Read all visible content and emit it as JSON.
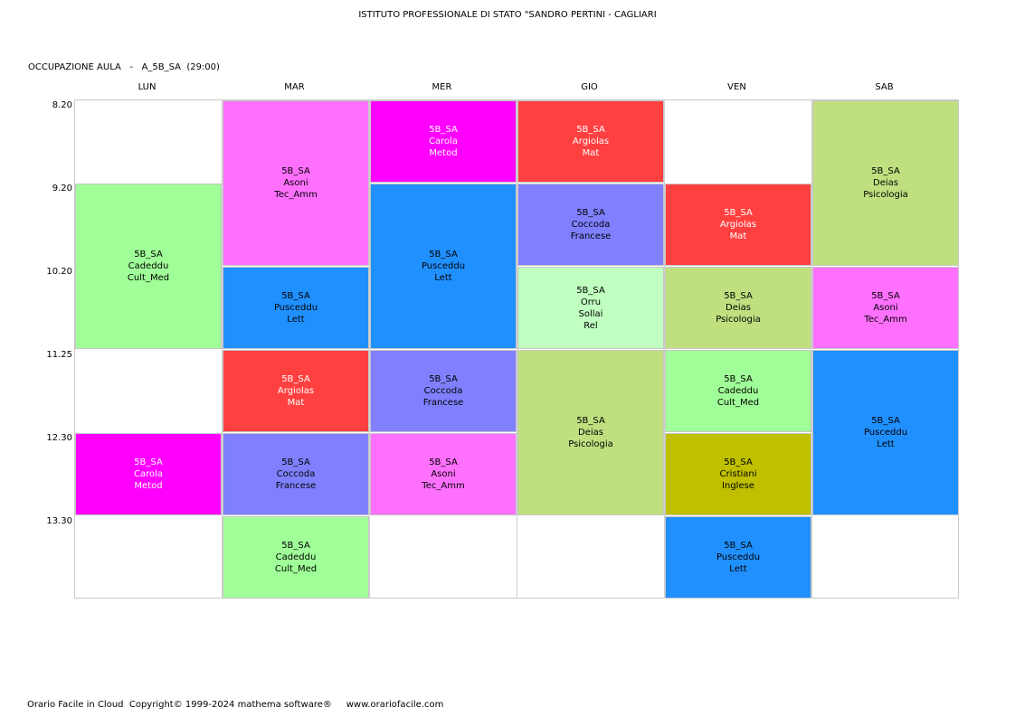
{
  "header": {
    "school": "ISTITUTO PROFESSIONALE DI STATO \"SANDRO PERTINI - CAGLIARI",
    "room_label": "OCCUPAZIONE AULA   -   A_5B_SA  (29:00)"
  },
  "days": [
    "LUN",
    "MAR",
    "MER",
    "GIO",
    "VEN",
    "SAB"
  ],
  "times": [
    "8.20",
    "9.20",
    "10.20",
    "11.25",
    "12.30",
    "13.30"
  ],
  "colors": {
    "magenta": "#ff00ff",
    "pink": "#ff70ff",
    "red": "#ff4040",
    "blue": "#2090ff",
    "periwinkle": "#8080ff",
    "light_green": "#a0ff98",
    "pale_green": "#c0ffc0",
    "olive_green": "#c0e080",
    "olive": "#c0c000"
  },
  "lessons": [
    {
      "day": 0,
      "start": 1,
      "span": 2,
      "color": "light_green",
      "text_color": "#000000",
      "lines": [
        "5B_SA",
        "Cadeddu",
        "Cult_Med"
      ]
    },
    {
      "day": 0,
      "start": 4,
      "span": 1,
      "color": "magenta",
      "text_color": "#ffffff",
      "lines": [
        "5B_SA",
        "Carola",
        "Metod"
      ]
    },
    {
      "day": 1,
      "start": 0,
      "span": 2,
      "color": "pink",
      "text_color": "#000000",
      "lines": [
        "5B_SA",
        "Asoni",
        "Tec_Amm"
      ]
    },
    {
      "day": 1,
      "start": 2,
      "span": 1,
      "color": "blue",
      "text_color": "#000000",
      "lines": [
        "5B_SA",
        "Pusceddu",
        "Lett"
      ]
    },
    {
      "day": 1,
      "start": 3,
      "span": 1,
      "color": "red",
      "text_color": "#ffffff",
      "lines": [
        "5B_SA",
        "Argiolas",
        "Mat"
      ]
    },
    {
      "day": 1,
      "start": 4,
      "span": 1,
      "color": "periwinkle",
      "text_color": "#000000",
      "lines": [
        "5B_SA",
        "Coccoda",
        "Francese"
      ]
    },
    {
      "day": 1,
      "start": 5,
      "span": 1,
      "color": "light_green",
      "text_color": "#000000",
      "lines": [
        "5B_SA",
        "Cadeddu",
        "Cult_Med"
      ]
    },
    {
      "day": 2,
      "start": 0,
      "span": 1,
      "color": "magenta",
      "text_color": "#ffffff",
      "lines": [
        "5B_SA",
        "Carola",
        "Metod"
      ]
    },
    {
      "day": 2,
      "start": 1,
      "span": 2,
      "color": "blue",
      "text_color": "#000000",
      "lines": [
        "5B_SA",
        "Pusceddu",
        "Lett"
      ]
    },
    {
      "day": 2,
      "start": 3,
      "span": 1,
      "color": "periwinkle",
      "text_color": "#000000",
      "lines": [
        "5B_SA",
        "Coccoda",
        "Francese"
      ]
    },
    {
      "day": 2,
      "start": 4,
      "span": 1,
      "color": "pink",
      "text_color": "#000000",
      "lines": [
        "5B_SA",
        "Asoni",
        "Tec_Amm"
      ]
    },
    {
      "day": 3,
      "start": 0,
      "span": 1,
      "color": "red",
      "text_color": "#ffffff",
      "lines": [
        "5B_SA",
        "Argiolas",
        "Mat"
      ]
    },
    {
      "day": 3,
      "start": 1,
      "span": 1,
      "color": "periwinkle",
      "text_color": "#000000",
      "lines": [
        "5B_SA",
        "Coccoda",
        "Francese"
      ]
    },
    {
      "day": 3,
      "start": 2,
      "span": 1,
      "color": "pale_green",
      "text_color": "#000000",
      "lines": [
        "5B_SA",
        "Orru",
        "Sollai",
        "Rel"
      ]
    },
    {
      "day": 3,
      "start": 3,
      "span": 2,
      "color": "olive_green",
      "text_color": "#000000",
      "lines": [
        "5B_SA",
        "Deias",
        "Psicologia"
      ]
    },
    {
      "day": 4,
      "start": 1,
      "span": 1,
      "color": "red",
      "text_color": "#ffffff",
      "lines": [
        "5B_SA",
        "Argiolas",
        "Mat"
      ]
    },
    {
      "day": 4,
      "start": 2,
      "span": 1,
      "color": "olive_green",
      "text_color": "#000000",
      "lines": [
        "5B_SA",
        "Deias",
        "Psicologia"
      ]
    },
    {
      "day": 4,
      "start": 3,
      "span": 1,
      "color": "light_green",
      "text_color": "#000000",
      "lines": [
        "5B_SA",
        "Cadeddu",
        "Cult_Med"
      ]
    },
    {
      "day": 4,
      "start": 4,
      "span": 1,
      "color": "olive",
      "text_color": "#000000",
      "lines": [
        "5B_SA",
        "Cristiani",
        "Inglese"
      ]
    },
    {
      "day": 4,
      "start": 5,
      "span": 1,
      "color": "blue",
      "text_color": "#000000",
      "lines": [
        "5B_SA",
        "Pusceddu",
        "Lett"
      ]
    },
    {
      "day": 5,
      "start": 0,
      "span": 2,
      "color": "olive_green",
      "text_color": "#000000",
      "lines": [
        "5B_SA",
        "Deias",
        "Psicologia"
      ]
    },
    {
      "day": 5,
      "start": 2,
      "span": 1,
      "color": "pink",
      "text_color": "#000000",
      "lines": [
        "5B_SA",
        "Asoni",
        "Tec_Amm"
      ]
    },
    {
      "day": 5,
      "start": 3,
      "span": 2,
      "color": "blue",
      "text_color": "#000000",
      "lines": [
        "5B_SA",
        "Pusceddu",
        "Lett"
      ]
    }
  ],
  "footer": "Orario Facile in Cloud  Copyright© 1999-2024 mathema software®     www.orariofacile.com"
}
